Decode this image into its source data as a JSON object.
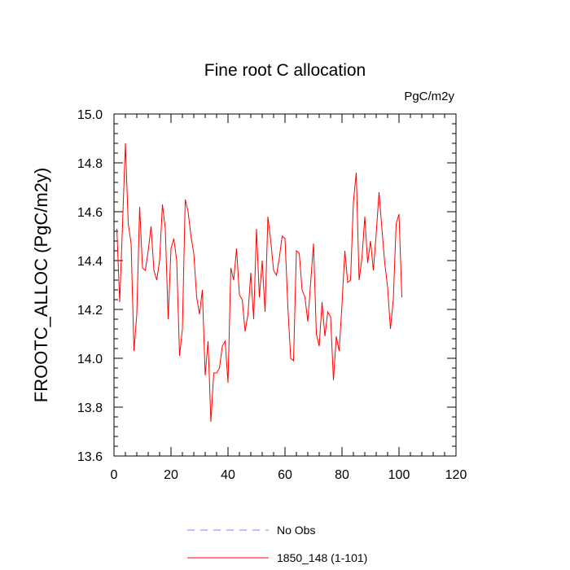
{
  "chart_data": {
    "type": "line",
    "title": "Fine root C allocation",
    "units": "PgC/m2y",
    "xlabel": "",
    "ylabel": "FROOTC_ALLOC  (PgC/m2y)",
    "xlim": [
      0,
      120
    ],
    "ylim": [
      13.6,
      15.0
    ],
    "xticks": [
      0,
      20,
      40,
      60,
      80,
      100,
      120
    ],
    "yticks": [
      13.6,
      13.8,
      14.0,
      14.2,
      14.4,
      14.6,
      14.8,
      15.0
    ],
    "xtick_labels": [
      "0",
      "20",
      "40",
      "60",
      "80",
      "100",
      "120"
    ],
    "ytick_labels": [
      "13.6",
      "13.8",
      "14.0",
      "14.2",
      "14.4",
      "14.6",
      "14.8",
      "15.0"
    ],
    "grid": false,
    "legend_position": "bottom",
    "series": [
      {
        "name": "No Obs",
        "color": "#8080ff",
        "dash": true,
        "values": []
      },
      {
        "name": "1850_148 (1-101)",
        "color": "#ff0000",
        "dash": false,
        "x": [
          1,
          2,
          3,
          4,
          5,
          6,
          7,
          8,
          9,
          10,
          11,
          12,
          13,
          14,
          15,
          16,
          17,
          18,
          19,
          20,
          21,
          22,
          23,
          24,
          25,
          26,
          27,
          28,
          29,
          30,
          31,
          32,
          33,
          34,
          35,
          36,
          37,
          38,
          39,
          40,
          41,
          42,
          43,
          44,
          45,
          46,
          47,
          48,
          49,
          50,
          51,
          52,
          53,
          54,
          55,
          56,
          57,
          58,
          59,
          60,
          61,
          62,
          63,
          64,
          65,
          66,
          67,
          68,
          69,
          70,
          71,
          72,
          73,
          74,
          75,
          76,
          77,
          78,
          79,
          80,
          81,
          82,
          83,
          84,
          85,
          86,
          87,
          88,
          89,
          90,
          91,
          92,
          93,
          94,
          95,
          96,
          97,
          98,
          99,
          100,
          101
        ],
        "values": [
          14.53,
          14.23,
          14.55,
          14.88,
          14.55,
          14.47,
          14.03,
          14.18,
          14.62,
          14.37,
          14.36,
          14.44,
          14.54,
          14.36,
          14.32,
          14.4,
          14.63,
          14.53,
          14.16,
          14.45,
          14.49,
          14.4,
          14.01,
          14.12,
          14.65,
          14.6,
          14.5,
          14.43,
          14.25,
          14.18,
          14.28,
          13.93,
          14.07,
          13.74,
          13.94,
          13.94,
          13.96,
          14.05,
          14.07,
          13.9,
          14.37,
          14.32,
          14.45,
          14.26,
          14.24,
          14.11,
          14.18,
          14.35,
          14.16,
          14.53,
          14.25,
          14.4,
          14.19,
          14.58,
          14.48,
          14.36,
          14.34,
          14.41,
          14.5,
          14.49,
          14.21,
          14.0,
          13.99,
          14.44,
          14.43,
          14.28,
          14.25,
          14.15,
          14.31,
          14.47,
          14.1,
          14.05,
          14.23,
          14.09,
          14.19,
          14.17,
          13.91,
          14.09,
          14.03,
          14.22,
          14.44,
          14.31,
          14.32,
          14.64,
          14.76,
          14.32,
          14.41,
          14.58,
          14.39,
          14.48,
          14.36,
          14.51,
          14.68,
          14.53,
          14.39,
          14.29,
          14.12,
          14.24,
          14.55,
          14.59,
          14.25
        ]
      }
    ]
  }
}
